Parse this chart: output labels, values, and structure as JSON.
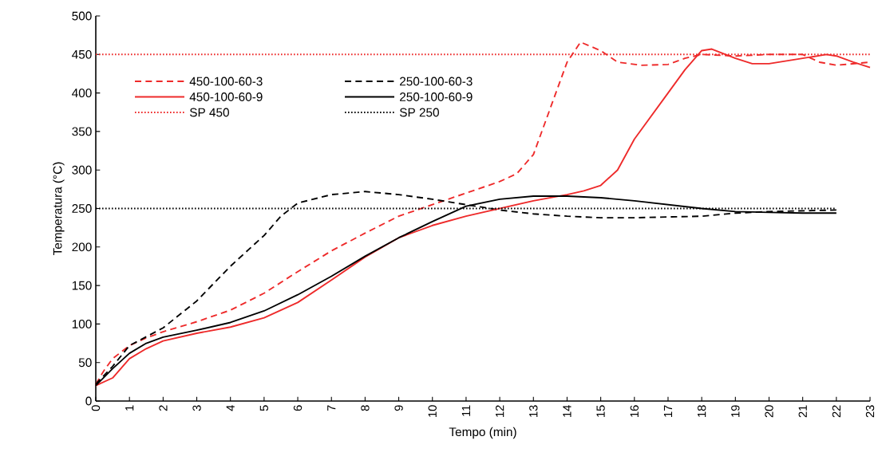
{
  "chart_data": {
    "type": "line",
    "xlabel": "Tempo (min)",
    "ylabel": "Temperatura (°C)",
    "xlim": [
      0,
      23
    ],
    "ylim": [
      0,
      500
    ],
    "xticks": [
      0,
      1,
      2,
      3,
      4,
      5,
      6,
      7,
      8,
      9,
      10,
      11,
      12,
      13,
      14,
      15,
      16,
      17,
      18,
      19,
      20,
      21,
      22,
      23
    ],
    "yticks": [
      0,
      50,
      100,
      150,
      200,
      250,
      300,
      350,
      400,
      450,
      500
    ],
    "legend": "top left",
    "marker": "none",
    "series": [
      {
        "name": "450-100-60-3",
        "color": "#ee2a2a",
        "line_style": "dashed",
        "x": [
          0,
          0.25,
          0.5,
          1,
          1.5,
          2,
          3,
          4,
          5,
          6,
          7,
          8,
          9,
          10,
          11,
          12,
          12.5,
          13,
          13.5,
          14,
          14.4,
          15,
          15.5,
          16.2,
          17,
          17.5,
          18,
          19,
          20,
          21,
          21.5,
          22,
          23
        ],
        "values": [
          22,
          40,
          55,
          72,
          82,
          90,
          103,
          118,
          140,
          168,
          195,
          218,
          240,
          255,
          270,
          285,
          295,
          320,
          380,
          440,
          466,
          455,
          440,
          436,
          437,
          445,
          450,
          448,
          450,
          450,
          440,
          436,
          440
        ]
      },
      {
        "name": "250-100-60-3",
        "color": "#000000",
        "line_style": "dashed",
        "x": [
          0,
          0.5,
          1,
          2,
          3,
          4,
          5,
          5.5,
          6,
          7,
          8,
          9,
          10,
          11,
          12,
          13,
          14,
          15,
          16,
          17,
          18,
          19,
          20,
          21,
          22
        ],
        "values": [
          22,
          45,
          72,
          95,
          130,
          175,
          215,
          240,
          257,
          268,
          272,
          268,
          262,
          255,
          248,
          243,
          240,
          238,
          238,
          239,
          240,
          244,
          246,
          247,
          248
        ]
      },
      {
        "name": "450-100-60-9",
        "color": "#ee2a2a",
        "line_style": "solid",
        "x": [
          0,
          0.5,
          1,
          1.5,
          2,
          3,
          4,
          5,
          6,
          7,
          8,
          9,
          10,
          11,
          12,
          13,
          14,
          14.5,
          15,
          15.5,
          16,
          17,
          17.5,
          18,
          18.3,
          19,
          19.5,
          20,
          21,
          21.7,
          22,
          22.5,
          23
        ],
        "values": [
          20,
          30,
          55,
          68,
          78,
          88,
          96,
          108,
          128,
          157,
          187,
          212,
          228,
          240,
          250,
          260,
          268,
          273,
          280,
          300,
          340,
          400,
          430,
          455,
          457,
          445,
          438,
          438,
          445,
          450,
          448,
          440,
          433
        ]
      },
      {
        "name": "250-100-60-9",
        "color": "#000000",
        "line_style": "solid",
        "x": [
          0,
          0.5,
          1,
          1.5,
          2,
          3,
          4,
          5,
          6,
          7,
          8,
          9,
          10,
          11,
          12,
          13,
          14,
          15,
          16,
          17,
          18,
          19,
          20,
          21,
          22
        ],
        "values": [
          20,
          42,
          62,
          75,
          83,
          92,
          102,
          117,
          138,
          162,
          188,
          212,
          233,
          253,
          262,
          266,
          266,
          264,
          260,
          255,
          250,
          246,
          245,
          244,
          244
        ]
      },
      {
        "name": "SP 450",
        "color": "#ee2a2a",
        "line_style": "dotted",
        "x": [
          0,
          23
        ],
        "values": [
          450,
          450
        ]
      },
      {
        "name": "SP 250",
        "color": "#000000",
        "line_style": "dotted",
        "x": [
          0,
          22
        ],
        "values": [
          250,
          250
        ]
      }
    ]
  }
}
